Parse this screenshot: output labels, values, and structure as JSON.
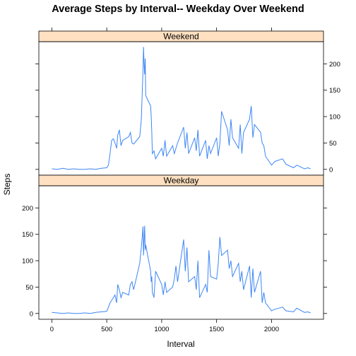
{
  "chart_data": {
    "type": "line",
    "title": "Average Steps by Interval-- Weekday Over Weekend",
    "xlabel": "Interval",
    "ylabel": "Steps",
    "xlim": [
      -118,
      2473
    ],
    "ylim": [
      -11,
      242
    ],
    "x_ticks": [
      0,
      500,
      1000,
      1500,
      2000
    ],
    "y_ticks": [
      0,
      50,
      100,
      150,
      200
    ],
    "colors": {
      "line": "#3d86f5",
      "strip": "#ffe0c0",
      "frame": "#000000"
    },
    "panels": [
      {
        "strip_label": "Weekend",
        "y_tick_side": "right",
        "series": [
          {
            "x": [
              0,
              50,
              100,
              150,
              200,
              250,
              300,
              350,
              400,
              450,
              500,
              515,
              530,
              545,
              560,
              575,
              590,
              600,
              615,
              630,
              645,
              700,
              715,
              730,
              745,
              800,
              815,
              830,
              835,
              840,
              845,
              850,
              855,
              900,
              905,
              910,
              915,
              930,
              945,
              1000,
              1015,
              1030,
              1045,
              1100,
              1115,
              1130,
              1145,
              1200,
              1215,
              1230,
              1245,
              1300,
              1315,
              1330,
              1345,
              1400,
              1415,
              1430,
              1445,
              1500,
              1515,
              1530,
              1545,
              1600,
              1615,
              1630,
              1645,
              1700,
              1715,
              1730,
              1745,
              1800,
              1815,
              1830,
              1845,
              1900,
              1915,
              1930,
              1945,
              2000,
              2030,
              2100,
              2130,
              2200,
              2230,
              2300,
              2330,
              2355
            ],
            "y": [
              1,
              0,
              2,
              0,
              1,
              0,
              0,
              1,
              0,
              2,
              3,
              8,
              30,
              55,
              58,
              50,
              40,
              65,
              75,
              45,
              55,
              62,
              70,
              50,
              48,
              62,
              95,
              190,
              232,
              200,
              180,
              210,
              140,
              120,
              100,
              70,
              30,
              35,
              20,
              40,
              25,
              55,
              25,
              45,
              30,
              40,
              50,
              80,
              40,
              70,
              30,
              60,
              35,
              75,
              25,
              55,
              20,
              45,
              30,
              60,
              25,
              50,
              110,
              75,
              45,
              95,
              60,
              40,
              85,
              30,
              70,
              95,
              120,
              60,
              85,
              70,
              50,
              45,
              25,
              8,
              15,
              20,
              10,
              3,
              8,
              1,
              3,
              1
            ]
          }
        ]
      },
      {
        "strip_label": "Weekday",
        "y_tick_side": "left",
        "series": [
          {
            "x": [
              0,
              50,
              100,
              150,
              200,
              250,
              300,
              350,
              400,
              450,
              500,
              515,
              530,
              545,
              560,
              575,
              590,
              600,
              615,
              630,
              645,
              700,
              715,
              730,
              745,
              800,
              815,
              830,
              835,
              840,
              845,
              850,
              855,
              900,
              905,
              910,
              915,
              930,
              945,
              1000,
              1015,
              1030,
              1045,
              1100,
              1115,
              1130,
              1145,
              1200,
              1215,
              1230,
              1245,
              1300,
              1315,
              1330,
              1345,
              1400,
              1415,
              1430,
              1445,
              1500,
              1515,
              1530,
              1545,
              1600,
              1615,
              1630,
              1645,
              1700,
              1715,
              1730,
              1745,
              1800,
              1815,
              1830,
              1845,
              1900,
              1915,
              1930,
              1945,
              2000,
              2030,
              2100,
              2130,
              2200,
              2230,
              2300,
              2330,
              2355
            ],
            "y": [
              2,
              1,
              0,
              1,
              0,
              0,
              1,
              0,
              2,
              3,
              4,
              12,
              20,
              25,
              30,
              35,
              20,
              55,
              45,
              30,
              40,
              35,
              55,
              60,
              45,
              95,
              125,
              165,
              110,
              140,
              166,
              120,
              130,
              80,
              60,
              70,
              40,
              30,
              80,
              55,
              35,
              60,
              40,
              50,
              65,
              90,
              60,
              140,
              80,
              125,
              60,
              70,
              45,
              100,
              30,
              55,
              40,
              120,
              70,
              65,
              95,
              145,
              110,
              120,
              85,
              100,
              70,
              95,
              60,
              80,
              45,
              90,
              30,
              85,
              40,
              80,
              20,
              40,
              20,
              5,
              8,
              12,
              5,
              3,
              10,
              2,
              3,
              1
            ]
          }
        ]
      }
    ]
  }
}
